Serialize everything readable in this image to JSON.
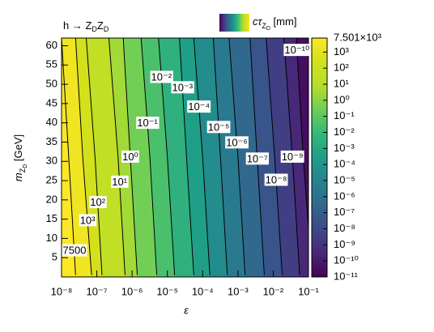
{
  "chart_data": {
    "type": "contour",
    "title": [
      "h → Z",
      "D",
      "Z",
      "D"
    ],
    "x_label": "ε",
    "y_label": [
      "m",
      "Z",
      "D",
      " [GeV]"
    ],
    "colorbar_label": [
      "cτ",
      "Z",
      "D",
      " [mm]"
    ],
    "xlim": [
      1e-08,
      0.1
    ],
    "xlog": true,
    "xticks": [
      {
        "value": 1e-08,
        "label": "10⁻⁸"
      },
      {
        "value": 1e-07,
        "label": "10⁻⁷"
      },
      {
        "value": 1e-06,
        "label": "10⁻⁶"
      },
      {
        "value": 1e-05,
        "label": "10⁻⁵"
      },
      {
        "value": 0.0001,
        "label": "10⁻⁴"
      },
      {
        "value": 0.001,
        "label": "10⁻³"
      },
      {
        "value": 0.01,
        "label": "10⁻²"
      },
      {
        "value": 0.1,
        "label": "10⁻¹"
      }
    ],
    "ylim": [
      0,
      62
    ],
    "yticks": [
      5,
      10,
      15,
      20,
      25,
      30,
      35,
      40,
      45,
      50,
      55,
      60
    ],
    "zlim": [
      1e-11,
      7501
    ],
    "zlog": true,
    "colormap": "viridis",
    "zticks": [
      {
        "value": 1e-11,
        "label": "10⁻¹¹"
      },
      {
        "value": 1e-10,
        "label": "10⁻¹⁰"
      },
      {
        "value": 1e-09,
        "label": "10⁻⁹"
      },
      {
        "value": 1e-08,
        "label": "10⁻⁸"
      },
      {
        "value": 1e-07,
        "label": "10⁻⁷"
      },
      {
        "value": 1e-06,
        "label": "10⁻⁶"
      },
      {
        "value": 1e-05,
        "label": "10⁻⁵"
      },
      {
        "value": 0.0001,
        "label": "10⁻⁴"
      },
      {
        "value": 0.001,
        "label": "10⁻³"
      },
      {
        "value": 0.01,
        "label": "10⁻²"
      },
      {
        "value": 0.1,
        "label": "10⁻¹"
      },
      {
        "value": 1,
        "label": "10⁰"
      },
      {
        "value": 10,
        "label": "10¹"
      },
      {
        "value": 100,
        "label": "10²"
      },
      {
        "value": 1000,
        "label": "10³"
      },
      {
        "value": 7501,
        "label": "7.501×10³"
      }
    ],
    "contours": [
      {
        "level": 7500,
        "label": "7500",
        "x": [
          2.5e-08,
          1.6e-08,
          1e-08
        ],
        "y": [
          0.5,
          31,
          62
        ]
      },
      {
        "level": 1000,
        "label": "10³",
        "x": [
          7.1e-08,
          4e-08,
          2.5e-08
        ],
        "y": [
          0.5,
          31,
          62
        ]
      },
      {
        "level": 100,
        "label": "10²",
        "x": [
          1.4e-07,
          8.9e-08,
          5e-08
        ],
        "y": [
          0.5,
          31,
          62
        ]
      },
      {
        "level": 10,
        "label": "10¹",
        "x": [
          6.3e-07,
          4e-07,
          2.2e-07
        ],
        "y": [
          0.5,
          31,
          62
        ]
      },
      {
        "level": 1,
        "label": "10⁰",
        "x": [
          1.4e-06,
          8.9e-07,
          5.6e-07
        ],
        "y": [
          0.5,
          31,
          62
        ]
      },
      {
        "level": 0.1,
        "label": "10⁻¹",
        "x": [
          5e-06,
          3.2e-06,
          1.8e-06
        ],
        "y": [
          0.5,
          31,
          62
        ]
      },
      {
        "level": 0.01,
        "label": "10⁻²",
        "x": [
          1.6e-05,
          1e-05,
          5.6e-06
        ],
        "y": [
          0.5,
          31,
          62
        ]
      },
      {
        "level": 0.001,
        "label": "10⁻³",
        "x": [
          5.6e-05,
          3.5e-05,
          2.2e-05
        ],
        "y": [
          0.5,
          31,
          62
        ]
      },
      {
        "level": 0.0001,
        "label": "10⁻⁴",
        "x": [
          0.00016,
          0.0001,
          5.6e-05
        ],
        "y": [
          0.5,
          31,
          62
        ]
      },
      {
        "level": 1e-05,
        "label": "10⁻⁵",
        "x": [
          0.0005,
          0.00032,
          0.0002
        ],
        "y": [
          0.5,
          31,
          62
        ]
      },
      {
        "level": 1e-06,
        "label": "10⁻⁶",
        "x": [
          0.0016,
          0.001,
          0.00056
        ],
        "y": [
          0.5,
          31,
          62
        ]
      },
      {
        "level": 1e-07,
        "label": "10⁻⁷",
        "x": [
          0.0056,
          0.0035,
          0.0022
        ],
        "y": [
          0.5,
          31,
          62
        ]
      },
      {
        "level": 1e-08,
        "label": "10⁻⁸",
        "x": [
          0.018,
          0.011,
          0.0063
        ],
        "y": [
          0.5,
          31,
          62
        ]
      },
      {
        "level": 1e-09,
        "label": "10⁻⁹",
        "x": [
          0.056,
          0.035,
          0.02
        ],
        "y": [
          0.5,
          31,
          62
        ]
      },
      {
        "level": 1e-10,
        "label": "10⁻¹⁰",
        "x": [
          0.126,
          0.071,
          0.045
        ],
        "y": [
          0.5,
          31,
          62
        ]
      }
    ]
  }
}
